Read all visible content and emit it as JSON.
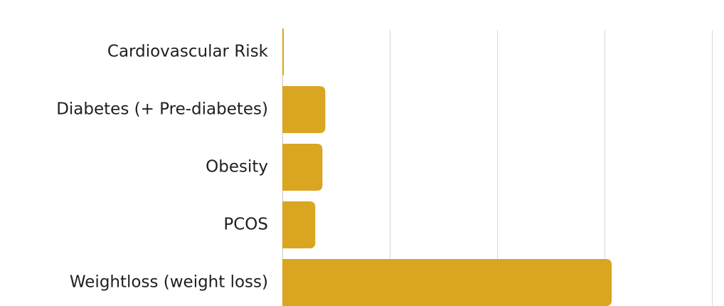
{
  "colors": {
    "bar": "#DAA520",
    "gridline": "#d9d9d9",
    "text": "#1f1f1f"
  },
  "chart_data": {
    "type": "bar",
    "orientation": "horizontal",
    "categories": [
      "Cardiovascular Risk",
      "Diabetes (+ Pre-diabetes)",
      "Obesity",
      "PCOS",
      "Weightloss (weight loss)"
    ],
    "values": [
      0.5,
      15,
      14,
      11.5,
      115
    ],
    "xlim": [
      0,
      150
    ],
    "x_gridlines": [
      0,
      37.5,
      75,
      112.5,
      150
    ],
    "grid": true,
    "legend": "none",
    "title": "",
    "xlabel": "",
    "ylabel": ""
  }
}
